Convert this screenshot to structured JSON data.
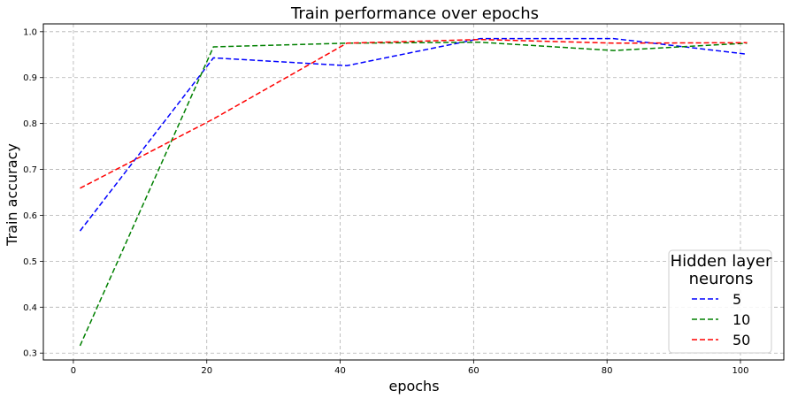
{
  "chart_data": {
    "type": "line",
    "title": "Train performance over epochs",
    "xlabel": "epochs",
    "ylabel": "Train accuracy",
    "x": [
      1,
      21,
      41,
      61,
      81,
      101
    ],
    "series": [
      {
        "name": "5",
        "color": "#0000ff",
        "values": [
          0.566,
          0.943,
          0.926,
          0.985,
          0.985,
          0.951
        ]
      },
      {
        "name": "10",
        "color": "#008000",
        "values": [
          0.316,
          0.967,
          0.975,
          0.977,
          0.959,
          0.975
        ]
      },
      {
        "name": "50",
        "color": "#ff0000",
        "values": [
          0.659,
          0.81,
          0.975,
          0.983,
          0.975,
          0.976
        ]
      }
    ],
    "xlim": [
      -4.5,
      106.5
    ],
    "ylim": [
      0.285,
      1.017
    ],
    "xticks": [
      0,
      20,
      40,
      60,
      80,
      100
    ],
    "yticks": [
      0.3,
      0.4,
      0.5,
      0.6,
      0.7,
      0.8,
      0.9,
      1.0
    ],
    "xtick_labels": [
      "0",
      "20",
      "40",
      "60",
      "80",
      "100"
    ],
    "ytick_labels": [
      "0.3",
      "0.4",
      "0.5",
      "0.6",
      "0.7",
      "0.8",
      "0.9",
      "1.0"
    ],
    "grid": true,
    "line_style": "dashed",
    "legend": {
      "title_lines": [
        "Hidden layer",
        "neurons"
      ],
      "placement": "lower-right"
    }
  }
}
